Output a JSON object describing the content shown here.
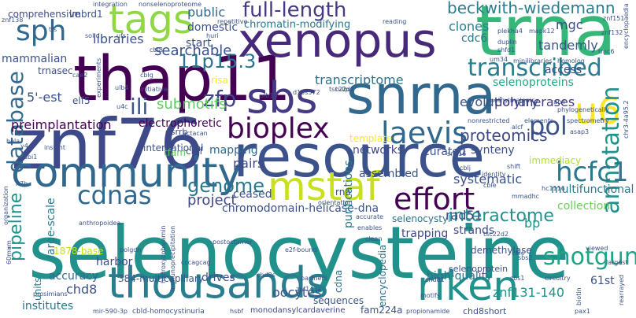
{
  "words": [
    {
      "t": "selenocysteine",
      "c": "#21918c"
    },
    {
      "t": "resource",
      "c": "#3b528b"
    },
    {
      "t": "znf76",
      "c": "#3e4989"
    },
    {
      "t": "thap11",
      "c": "#440154"
    },
    {
      "t": "trna",
      "c": "#35b779"
    },
    {
      "t": "xenopus",
      "c": "#482878"
    },
    {
      "t": "snrna",
      "c": "#31688e"
    },
    {
      "t": "sbs",
      "c": "#443983"
    },
    {
      "t": "tags",
      "c": "#90d743"
    },
    {
      "t": "community",
      "c": "#31688e"
    },
    {
      "t": "mstaf",
      "c": "#c8e020"
    },
    {
      "t": "riken",
      "c": "#21918c"
    },
    {
      "t": "thousands",
      "c": "#287d8e"
    },
    {
      "t": "bioplex",
      "c": "#440154"
    },
    {
      "t": "laevis",
      "c": "#31688e"
    },
    {
      "t": "effort",
      "c": "#440154"
    },
    {
      "t": "u6",
      "c": "#fde725"
    },
    {
      "t": "database",
      "c": "#31688e"
    },
    {
      "t": "annotation",
      "c": "#21918c"
    },
    {
      "t": "transcribed",
      "c": "#287d8e"
    },
    {
      "t": "full-length",
      "c": "#443983"
    },
    {
      "t": "sph",
      "c": "#31688e"
    },
    {
      "t": "hcfc1",
      "c": "#2a788e"
    },
    {
      "t": "shotgun",
      "c": "#20a486"
    },
    {
      "t": "cdnas",
      "c": "#31688e"
    },
    {
      "t": "pipeline",
      "c": "#21918c"
    },
    {
      "t": "genome",
      "c": "#2a788e"
    },
    {
      "t": "ili",
      "c": "#3b528b"
    },
    {
      "t": "zfp",
      "c": "#414487"
    },
    {
      "t": "11p15.3",
      "c": "#2c728e"
    },
    {
      "t": "pol",
      "c": "#3b528b"
    },
    {
      "t": "interactome",
      "c": "#21918c"
    },
    {
      "t": "beckwith-wiedemann",
      "c": "#287d8e"
    },
    {
      "t": "proteomics",
      "c": "#3e4989"
    },
    {
      "t": "submotifs",
      "c": "#5ec962"
    },
    {
      "t": "searchable",
      "c": "#3b528b"
    },
    {
      "t": "project",
      "c": "#3e4989"
    },
    {
      "t": "libraries",
      "c": "#3b528b"
    },
    {
      "t": "chromatin-modifying",
      "c": "#2a788e"
    },
    {
      "t": "clones",
      "c": "#26828e"
    },
    {
      "t": "transcriptome",
      "c": "#2c728e"
    },
    {
      "t": "selenoproteins",
      "c": "#22a884"
    },
    {
      "t": "evolutionary",
      "c": "#3b528b"
    },
    {
      "t": "systematic",
      "c": "#3b528b"
    },
    {
      "t": "polymerases",
      "c": "#443983"
    },
    {
      "t": "multifunctional",
      "c": "#2a788e"
    },
    {
      "t": "tandemly",
      "c": "#3b528b"
    },
    {
      "t": "access",
      "c": "#3e4989"
    },
    {
      "t": "mgc",
      "c": "#3e4989"
    },
    {
      "t": "cdc6",
      "c": "#2a788e"
    },
    {
      "t": "public",
      "c": "#31688e"
    },
    {
      "t": "domestic",
      "c": "#3b528b"
    },
    {
      "t": "start",
      "c": "#3b528b"
    },
    {
      "t": "mammalian",
      "c": "#3b528b"
    },
    {
      "t": "preimplantation",
      "c": "#440154"
    },
    {
      "t": "5'-est",
      "c": "#3b528b"
    },
    {
      "t": "electrophoretic",
      "c": "#440154"
    },
    {
      "t": "chromodomain-helicase-dna",
      "c": "#3b528b"
    },
    {
      "t": "collection",
      "c": "#6ccd5a"
    },
    {
      "t": "strands",
      "c": "#3e4989"
    },
    {
      "t": "rad51",
      "c": "#3e4989"
    },
    {
      "t": "bp",
      "c": "#21918c"
    },
    {
      "t": "chd8",
      "c": "#3b528b"
    },
    {
      "t": "accuracy",
      "c": "#31688e"
    },
    {
      "t": "384-multicapillary",
      "c": "#3b528b"
    },
    {
      "t": "drives",
      "c": "#3b528b"
    },
    {
      "t": "oocytes",
      "c": "#3b528b"
    },
    {
      "t": "encyclopedia",
      "c": "#2c728e"
    },
    {
      "t": "high-quality",
      "c": "#2c728e"
    },
    {
      "t": "selenocystyl",
      "c": "#2c728e"
    },
    {
      "t": "znf131-140",
      "c": "#21918c"
    },
    {
      "t": "61st",
      "c": "#3b528b"
    },
    {
      "t": "networks",
      "c": "#3e4989"
    },
    {
      "t": "assembled",
      "c": "#3b528b"
    },
    {
      "t": "curated",
      "c": "#3b528b"
    },
    {
      "t": "synteny",
      "c": "#3b528b"
    },
    {
      "t": "immediacy",
      "c": "#b5de2b"
    },
    {
      "t": "international",
      "c": "#3b528b"
    },
    {
      "t": "cblf",
      "c": "#3b528b"
    },
    {
      "t": "mapping",
      "c": "#31688e"
    },
    {
      "t": "pairs",
      "c": "#3e4989"
    },
    {
      "t": "purifications",
      "c": "#2a788e"
    },
    {
      "t": "rna",
      "c": "#3b528b"
    },
    {
      "t": "ceased",
      "c": "#3b528b"
    },
    {
      "t": "trapping",
      "c": "#3e4989"
    },
    {
      "t": "harbor",
      "c": "#3e4989"
    },
    {
      "t": "large-scale",
      "c": "#2a788e"
    },
    {
      "t": "comprehensive",
      "c": "#3e4989"
    },
    {
      "t": "lmbrd1",
      "c": "#3b528b"
    },
    {
      "t": "units",
      "c": "#2a788e"
    },
    {
      "t": "institutes",
      "c": "#2a788e"
    },
    {
      "t": "sequences",
      "c": "#3b528b"
    },
    {
      "t": "monodansylcardaverine",
      "c": "#3e4989"
    },
    {
      "t": "fam224a",
      "c": "#3b528b"
    },
    {
      "t": "chd8short",
      "c": "#3b528b"
    },
    {
      "t": "cdna",
      "c": "#2c728e"
    },
    {
      "t": "selenoprotein",
      "c": "#3b528b"
    },
    {
      "t": "demethylase",
      "c": "#3b528b"
    },
    {
      "t": "esrrb",
      "c": "#3e4989"
    },
    {
      "t": "tfam",
      "c": "#5ec962"
    },
    {
      "t": "elf5",
      "c": "#3b528b"
    },
    {
      "t": "trnasec",
      "c": "#3b528b"
    },
    {
      "t": "1878-base",
      "c": "#c8e020"
    },
    {
      "t": "template",
      "c": "#fde725"
    },
    {
      "t": "risa",
      "c": "#fde725"
    },
    {
      "t": "actacan",
      "c": "#3b528b"
    },
    {
      "t": "cbl8",
      "c": "#3b528b"
    },
    {
      "t": "orientation",
      "c": "#3b528b"
    },
    {
      "t": "accurate",
      "c": "#3b528b"
    },
    {
      "t": "enables",
      "c": "#3b528b"
    },
    {
      "t": "clean",
      "c": "#3b528b"
    },
    {
      "t": "znf138",
      "c": "#3b528b"
    },
    {
      "t": "integration",
      "c": "#3b528b"
    },
    {
      "t": "nonselenoproteome",
      "c": "#3b528b"
    },
    {
      "t": "repetitive",
      "c": "#3b528b"
    },
    {
      "t": "reading",
      "c": "#3b528b"
    },
    {
      "t": "znf151",
      "c": "#3b528b"
    },
    {
      "t": "znf132",
      "c": "#3b528b"
    },
    {
      "t": "plekha4",
      "c": "#3b528b"
    },
    {
      "t": "mapk12",
      "c": "#3b528b"
    },
    {
      "t": "duplin",
      "c": "#3b528b"
    },
    {
      "t": "minilibraries",
      "c": "#3b528b"
    },
    {
      "t": "homolog",
      "c": "#3b528b"
    },
    {
      "t": "tmc6",
      "c": "#3b528b"
    },
    {
      "t": "shfd1",
      "c": "#3b528b"
    },
    {
      "t": "um34",
      "c": "#3b528b"
    },
    {
      "t": "tulip",
      "c": "#3b528b"
    },
    {
      "t": "nonrestricted",
      "c": "#3b528b"
    },
    {
      "t": "elements",
      "c": "#3b528b"
    },
    {
      "t": "spectrometry",
      "c": "#3b528b"
    },
    {
      "t": "phylogenetically",
      "c": "#3b528b"
    },
    {
      "t": "methylmalonic",
      "c": "#3b528b"
    },
    {
      "t": "rab4",
      "c": "#3b528b"
    },
    {
      "t": "alcf",
      "c": "#3b528b"
    },
    {
      "t": "asap3",
      "c": "#3b528b"
    },
    {
      "t": "snx16",
      "c": "#3b528b"
    },
    {
      "t": "shift",
      "c": "#3b528b"
    },
    {
      "t": "cblj",
      "c": "#3b528b"
    },
    {
      "t": "identity",
      "c": "#3b528b"
    },
    {
      "t": "cble",
      "c": "#3b528b"
    },
    {
      "t": "hc1116",
      "c": "#3b528b"
    },
    {
      "t": "mmadhc",
      "c": "#3b528b"
    },
    {
      "t": "tsc22d2",
      "c": "#3b528b"
    },
    {
      "t": "tsc22d1",
      "c": "#3b528b"
    },
    {
      "t": "ulb1",
      "c": "#3b528b"
    },
    {
      "t": "d13s572",
      "c": "#3b528b"
    },
    {
      "t": "solid",
      "c": "#3b528b"
    },
    {
      "t": "ufs",
      "c": "#3b528b"
    },
    {
      "t": "huri",
      "c": "#3b528b"
    },
    {
      "t": "cae2",
      "c": "#3b528b"
    },
    {
      "t": "cblg",
      "c": "#3b528b"
    },
    {
      "t": "initiative",
      "c": "#3b528b"
    },
    {
      "t": "experiments",
      "c": "#3b528b"
    },
    {
      "t": "ulb4",
      "c": "#3b528b"
    },
    {
      "t": "u4c",
      "c": "#3b528b"
    },
    {
      "t": "hela",
      "c": "#3b528b"
    },
    {
      "t": "y4",
      "c": "#3b528b"
    },
    {
      "t": "insight",
      "c": "#3b528b"
    },
    {
      "t": "abi1",
      "c": "#3b528b"
    },
    {
      "t": "anthropoidea",
      "c": "#3b528b"
    },
    {
      "t": "h7h",
      "c": "#3b528b"
    },
    {
      "t": "organization",
      "c": "#3b528b"
    },
    {
      "t": "60mum",
      "c": "#3b528b"
    },
    {
      "t": "polgdn",
      "c": "#3b528b"
    },
    {
      "t": "hydroxycobalamin",
      "c": "#3b528b"
    },
    {
      "t": "immunoprecipitation",
      "c": "#3b528b"
    },
    {
      "t": "cccagcag",
      "c": "#3b528b"
    },
    {
      "t": "postoctamer",
      "c": "#3b528b"
    },
    {
      "t": "e2f-bound",
      "c": "#3b528b"
    },
    {
      "t": "partners",
      "c": "#3b528b"
    },
    {
      "t": "chd8s",
      "c": "#3b528b"
    },
    {
      "t": "znf143a",
      "c": "#3b528b"
    },
    {
      "t": "motifs",
      "c": "#3b528b"
    },
    {
      "t": "sbs2",
      "c": "#3b528b"
    },
    {
      "t": "sbs1",
      "c": "#3b528b"
    },
    {
      "t": "circuitry",
      "c": "#3b528b"
    },
    {
      "t": "biotin",
      "c": "#3b528b"
    },
    {
      "t": "cblc",
      "c": "#3b528b"
    },
    {
      "t": "largest",
      "c": "#3b528b"
    },
    {
      "t": "viewed",
      "c": "#3b528b"
    },
    {
      "t": "pax1",
      "c": "#3b528b"
    },
    {
      "t": "rearrayed",
      "c": "#3b528b"
    },
    {
      "t": "chd81",
      "c": "#3b528b"
    },
    {
      "t": "prosimians",
      "c": "#3b528b"
    },
    {
      "t": "mir-590-3p",
      "c": "#3b528b"
    },
    {
      "t": "cbld-homocystinuria",
      "c": "#3b528b"
    },
    {
      "t": "hsbf",
      "c": "#3b528b"
    },
    {
      "t": "propionamide",
      "c": "#3b528b"
    },
    {
      "t": "tfs",
      "c": "#3b528b"
    },
    {
      "t": "chr3-4a95.2",
      "c": "#3b528b"
    },
    {
      "t": "encyclopaedia",
      "c": "#3b528b"
    }
  ]
}
